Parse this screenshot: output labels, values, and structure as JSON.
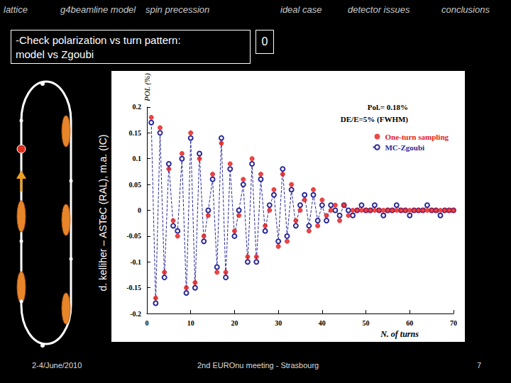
{
  "slide": {
    "nav": [
      "lattice",
      "g4beamline model",
      "spin precession",
      "ideal case",
      "detector issues",
      "conclusions"
    ],
    "box_text": "-Check polarization vs turn pattern:\n model vs Zgoubi",
    "box_number": "0",
    "credit": "d. kelliher – ASTeC (RAL), m.a. (IC)",
    "footer": {
      "date": "2-4/June/2010",
      "event": "2nd EUROnu meeting - Strasbourg",
      "page": "7"
    }
  },
  "chart_data": {
    "type": "scatter",
    "x_label": "N. of turns",
    "y_label": "POL (%)",
    "annotations": [
      "Pol.= 0.18%",
      "DE/E=5% (FWHM)"
    ],
    "xlim": [
      0,
      70
    ],
    "xticks": [
      0,
      10,
      20,
      30,
      40,
      50,
      60,
      70
    ],
    "ylim": [
      -0.2,
      0.2
    ],
    "yticks": [
      -0.2,
      -0.15,
      -0.1,
      -0.05,
      0,
      0.05,
      0.1,
      0.15,
      0.2
    ],
    "grid": false,
    "legend": "upper right",
    "x": [
      1,
      2,
      3,
      4,
      5,
      6,
      7,
      8,
      9,
      10,
      11,
      12,
      13,
      14,
      15,
      16,
      17,
      18,
      19,
      20,
      21,
      22,
      23,
      24,
      25,
      26,
      27,
      28,
      29,
      30,
      31,
      32,
      33,
      34,
      35,
      36,
      37,
      38,
      39,
      40,
      41,
      42,
      43,
      44,
      45,
      46,
      47,
      48,
      49,
      50,
      51,
      52,
      53,
      54,
      55,
      56,
      57,
      58,
      59,
      60,
      61,
      62,
      63,
      64,
      65,
      66,
      67,
      68,
      69,
      70
    ],
    "series": [
      {
        "name": "One-turn sampling",
        "color": "#e41a1c",
        "marker": "filled circle",
        "values": [
          0.18,
          -0.17,
          0.16,
          -0.12,
          0.08,
          -0.02,
          -0.05,
          0.11,
          -0.15,
          0.15,
          -0.14,
          0.1,
          -0.05,
          -0.01,
          0.07,
          -0.12,
          0.13,
          -0.12,
          0.09,
          -0.04,
          -0.01,
          0.06,
          -0.09,
          0.1,
          -0.09,
          0.07,
          -0.03,
          0.0,
          0.04,
          -0.07,
          0.07,
          -0.06,
          0.05,
          -0.02,
          0.0,
          0.02,
          -0.04,
          0.04,
          -0.03,
          0.02,
          -0.01,
          0.0,
          0.01,
          -0.02,
          0.01,
          -0.01,
          0.0,
          0.0,
          0.0,
          0.0,
          0.0,
          0.0,
          0.0,
          0.0,
          0.0,
          0.0,
          0.0,
          0.0,
          0.0,
          0.0,
          0.0,
          0.0,
          0.0,
          0.0,
          0.0,
          0.0,
          0.0,
          0.0,
          0.0,
          0.0
        ]
      },
      {
        "name": "MC-Zgoubi",
        "color": "#2a2a9a",
        "marker": "open circle",
        "line_style": "dashed",
        "type": "line",
        "values": [
          0.17,
          -0.18,
          0.15,
          -0.13,
          0.09,
          -0.03,
          -0.04,
          0.1,
          -0.16,
          0.14,
          -0.15,
          0.11,
          -0.06,
          0.0,
          0.06,
          -0.11,
          0.14,
          -0.13,
          0.08,
          -0.05,
          0.0,
          0.05,
          -0.1,
          0.09,
          -0.1,
          0.06,
          -0.04,
          0.01,
          0.03,
          -0.06,
          0.08,
          -0.05,
          0.04,
          -0.03,
          0.01,
          0.03,
          -0.03,
          0.03,
          -0.02,
          0.01,
          -0.02,
          0.01,
          0.0,
          -0.01,
          0.01,
          0.0,
          -0.01,
          0.0,
          0.01,
          0.0,
          0.0,
          0.01,
          0.0,
          -0.01,
          0.0,
          0.0,
          0.01,
          0.0,
          0.0,
          -0.01,
          0.0,
          0.0,
          0.0,
          0.01,
          0.0,
          0.0,
          -0.01,
          0.0,
          0.0,
          0.0
        ]
      }
    ]
  }
}
